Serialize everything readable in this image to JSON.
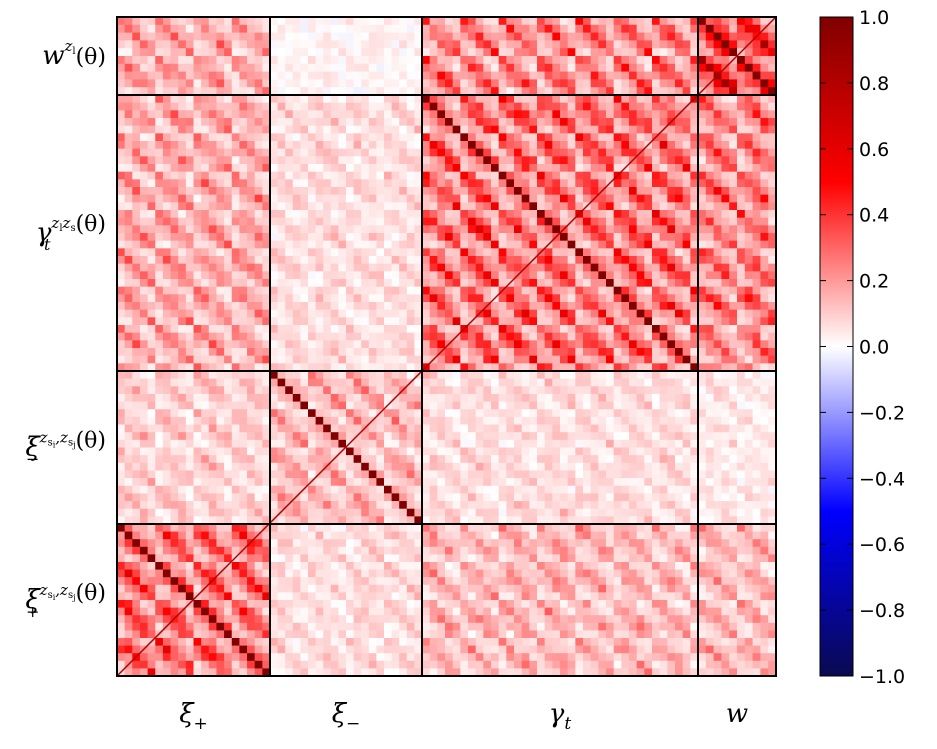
{
  "chart_data": {
    "type": "heatmap",
    "title": "",
    "description_blocks": [
      "xi_plus",
      "xi_minus",
      "gamma_t",
      "w"
    ],
    "x_blocks": [
      {
        "label": "ξ",
        "sub": "+",
        "id": "xi_plus"
      },
      {
        "label": "ξ",
        "sub": "−",
        "id": "xi_minus"
      },
      {
        "label": "γ",
        "sub": "t",
        "id": "gamma_t"
      },
      {
        "label": "w",
        "sub": "",
        "id": "w"
      }
    ],
    "y_blocks": [
      {
        "label": "w",
        "sup": "z",
        "supsub": "l",
        "arg": "(θ)",
        "id": "w"
      },
      {
        "label": "γ",
        "sub": "t",
        "sup": "z",
        "supsub": "l",
        "sup2": "z",
        "sup2sub": "s",
        "arg": "(θ)",
        "id": "gamma_t"
      },
      {
        "label": "ξ",
        "sub": "−",
        "sup": "z",
        "supsub": "s",
        "supsubsub": "i",
        "sup2": "z",
        "sup2sub": "s",
        "sup2subsub": "j",
        "arg": "(θ)",
        "id": "xi_minus"
      },
      {
        "label": "ξ",
        "sub": "+",
        "sup": "z",
        "supsub": "s",
        "supsubsub": "i",
        "sup2": "z",
        "sup2sub": "s",
        "sup2subsub": "j",
        "arg": "(θ)",
        "id": "xi_plus"
      }
    ],
    "block_sizes": [
      20,
      20,
      36,
      10
    ],
    "colorbar": {
      "min": -1.0,
      "max": 1.0,
      "ticks": [
        1.0,
        0.8,
        0.6,
        0.4,
        0.2,
        0.0,
        -0.2,
        -0.4,
        -0.6,
        -0.8,
        -1.0
      ],
      "tick_labels": [
        "1.0",
        "0.8",
        "0.6",
        "0.4",
        "0.2",
        "0.0",
        "−0.2",
        "−0.4",
        "−0.6",
        "−0.8",
        "−1.0"
      ],
      "colors": [
        "#0a0a50",
        "#0000ff",
        "#ffffff",
        "#ff0000",
        "#800000"
      ]
    },
    "block_correlation_levels": {
      "w-w": 0.9,
      "w-gamma_t": 0.5,
      "w-xi_plus": 0.35,
      "w-xi_minus": 0.05,
      "gamma_t-gamma_t": 0.6,
      "gamma_t-xi_plus": 0.35,
      "gamma_t-xi_minus": 0.15,
      "gamma_t-w": 0.5,
      "xi_minus-xi_minus": 0.3,
      "xi_minus-xi_plus": 0.2,
      "xi_minus-gamma_t": 0.15,
      "xi_minus-w": 0.1,
      "xi_plus-xi_plus": 0.6,
      "xi_plus-xi_minus": 0.15,
      "xi_plus-gamma_t": 0.3,
      "xi_plus-w": 0.3
    },
    "diagonal_value": 1.0
  }
}
